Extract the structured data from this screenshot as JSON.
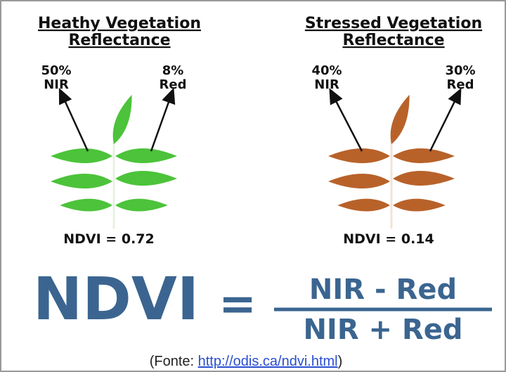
{
  "panels": [
    {
      "title": [
        "Heathy Vegetation",
        "Reflectance"
      ],
      "nir": {
        "percent": "50%",
        "label": "NIR"
      },
      "red": {
        "percent": "8%",
        "label": "Red"
      },
      "ndvi": "NDVI = 0.72"
    },
    {
      "title": [
        "Stressed Vegetation",
        "Reflectance"
      ],
      "nir": {
        "percent": "40%",
        "label": "NIR"
      },
      "red": {
        "percent": "30%",
        "label": "Red"
      },
      "ndvi": "NDVI = 0.14"
    }
  ],
  "formula": {
    "lhs": "NDVI",
    "equals": "=",
    "numerator": "NIR - Red",
    "denominator": "NIR + Red"
  },
  "source": {
    "prefix": "(Fonte: ",
    "link": "http://odis.ca/ndvi.html",
    "suffix": ")"
  }
}
